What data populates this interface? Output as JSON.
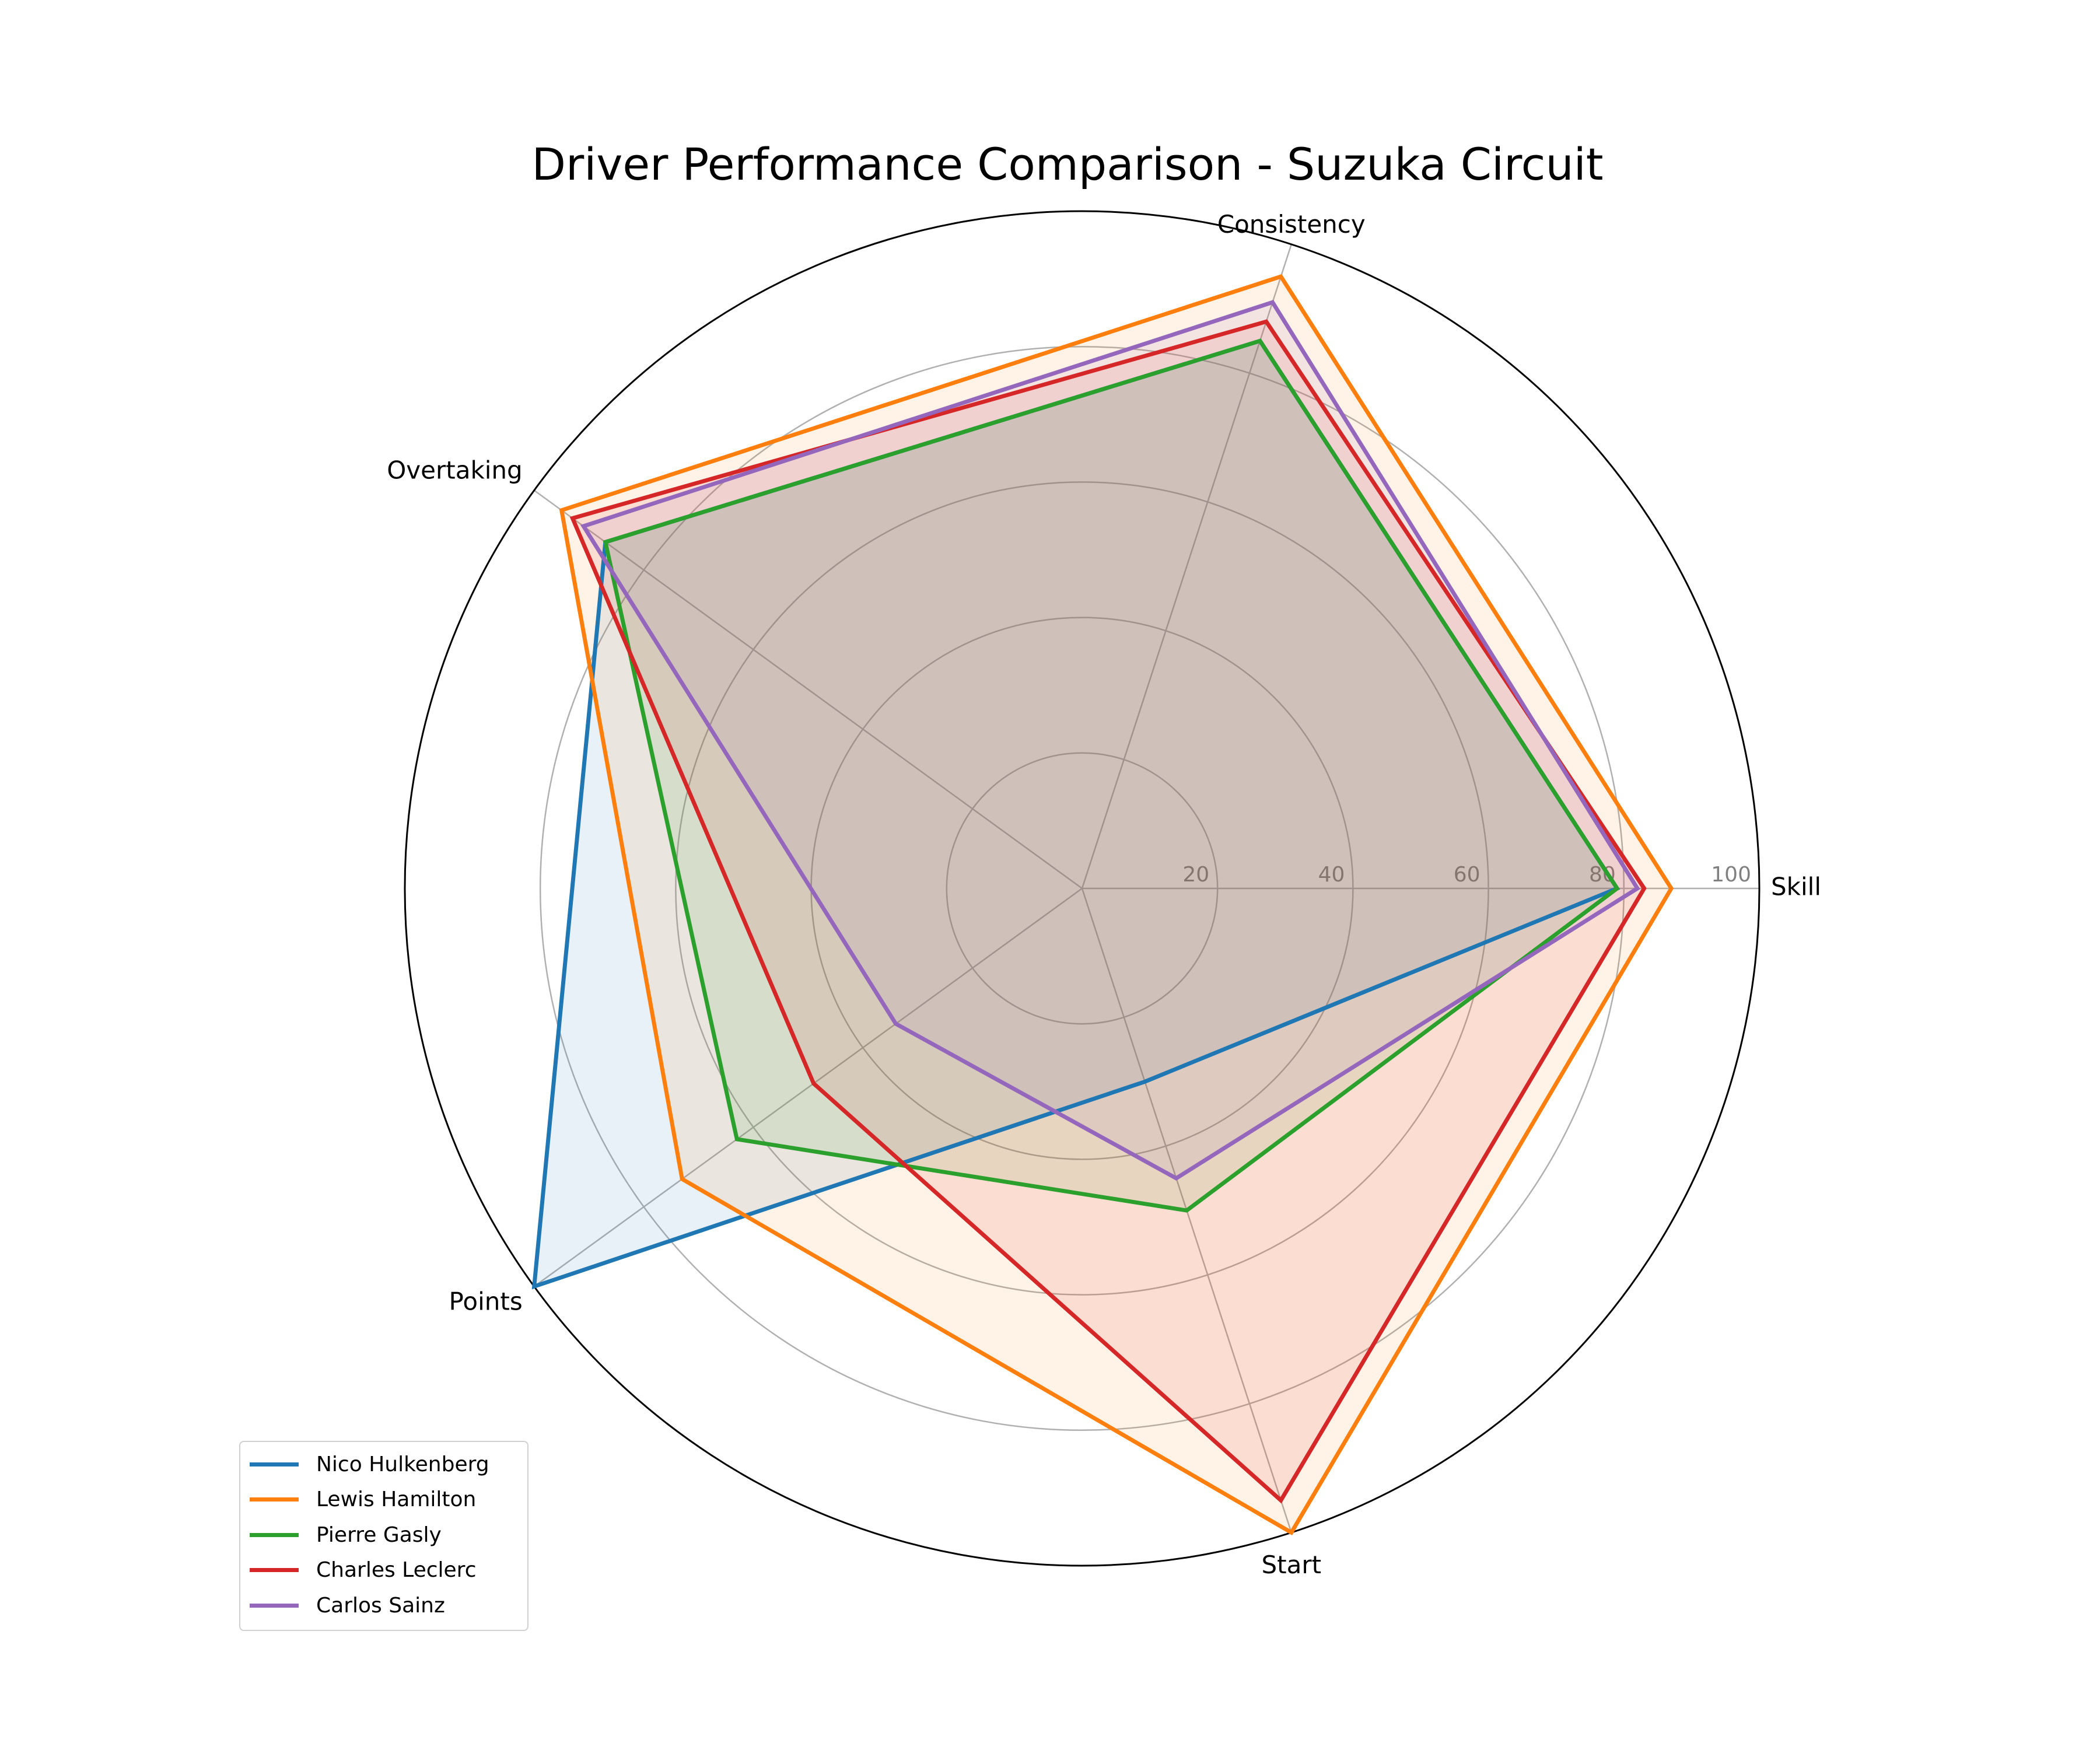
{
  "chart_data": {
    "type": "radar",
    "title": "Driver Performance Comparison - Suzuka Circuit",
    "axes": [
      "Skill",
      "Consistency",
      "Overtaking",
      "Points",
      "Start"
    ],
    "rlim": [
      0,
      100
    ],
    "r_ticks": [
      "20",
      "40",
      "60",
      "80",
      "100"
    ],
    "grid": true,
    "legend_position": "lower-left",
    "series": [
      {
        "name": "Nico Hulkenberg",
        "color": "#1f77b4",
        "values": [
          79,
          85,
          87,
          100,
          30
        ]
      },
      {
        "name": "Lewis Hamilton",
        "color": "#ff7f0e",
        "values": [
          87,
          95,
          95,
          73,
          100
        ]
      },
      {
        "name": "Pierre Gasly",
        "color": "#2ca02c",
        "values": [
          79,
          85,
          87,
          63,
          50
        ]
      },
      {
        "name": "Charles Leclerc",
        "color": "#d62728",
        "values": [
          83,
          88,
          93,
          49,
          95
        ]
      },
      {
        "name": "Carlos Sainz",
        "color": "#9467bd",
        "values": [
          82,
          91,
          91,
          34,
          45
        ]
      }
    ]
  }
}
